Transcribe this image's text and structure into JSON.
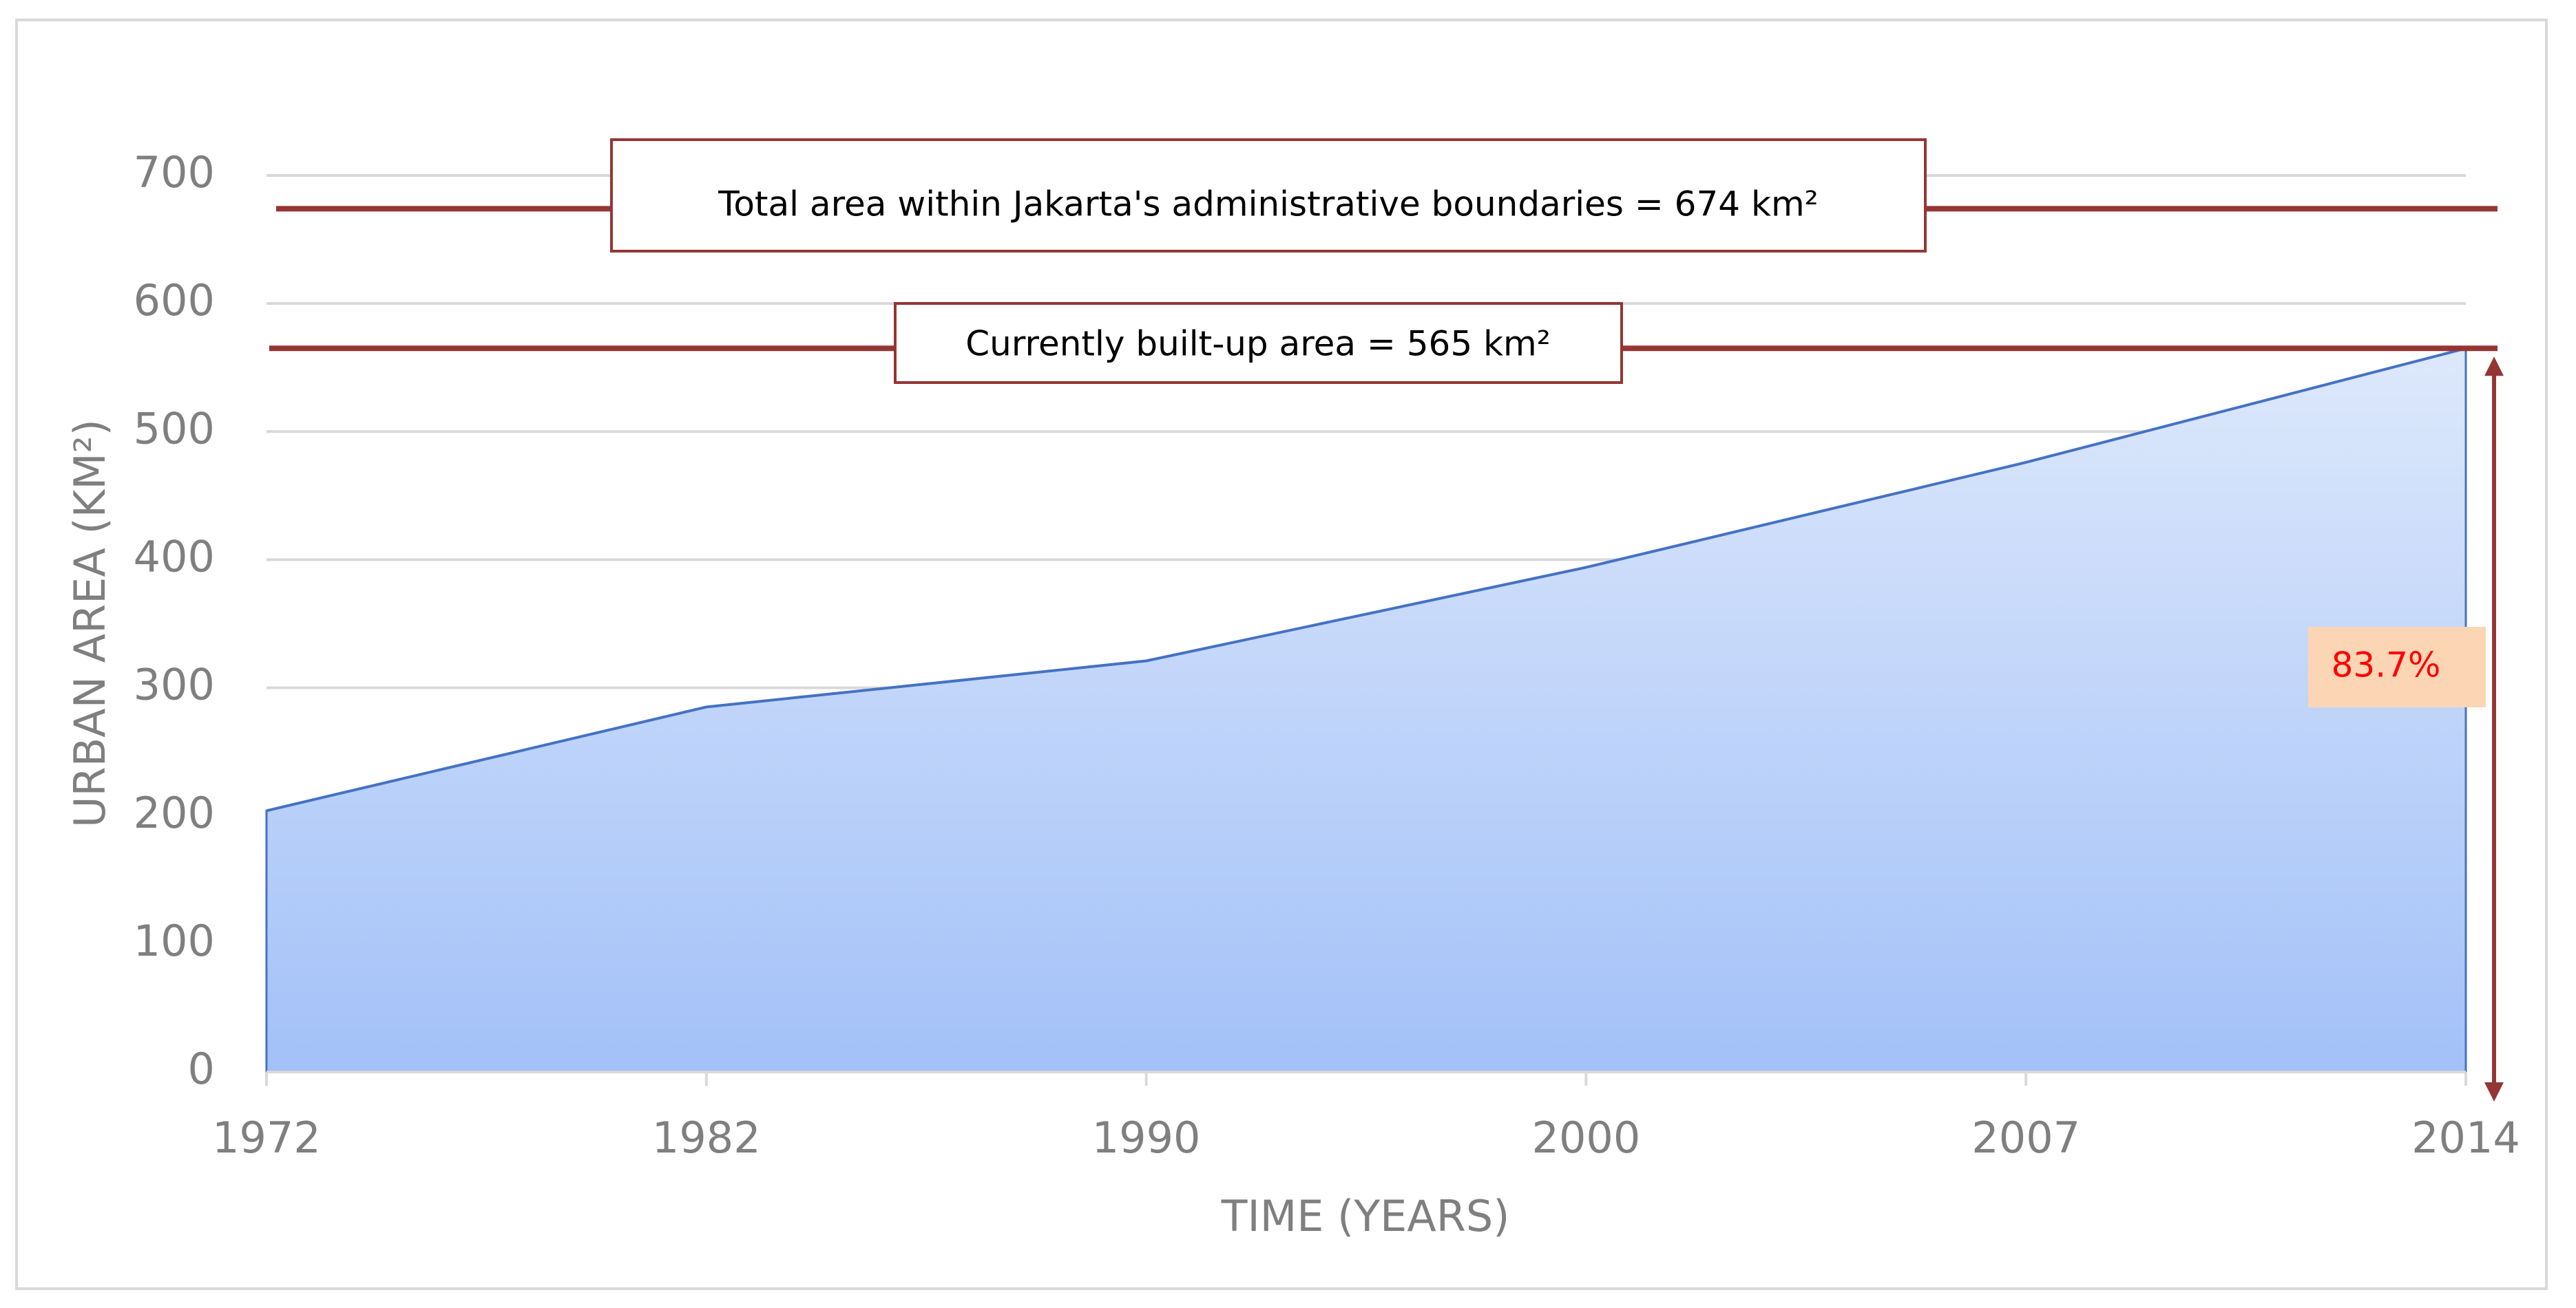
{
  "chart_data": {
    "type": "area",
    "categories": [
      "1972",
      "1982",
      "1990",
      "2000",
      "2007",
      "2014"
    ],
    "values": [
      204,
      285,
      321,
      394,
      476,
      565
    ],
    "color": "#4472c4",
    "ylim": [
      0,
      700
    ],
    "yticks": [
      0,
      100,
      200,
      300,
      400,
      500,
      600,
      700
    ],
    "grid": true,
    "x_label": "TIME (YEARS)",
    "y_label": "URBAN AREA (KM²)",
    "annotations": [
      {
        "text": "Total area within Jakarta's administrative boundaries = 674 km²",
        "value": 674,
        "color": "#943634"
      },
      {
        "text": "Currently built-up area =  565 km²",
        "value": 565,
        "color": "#943634"
      },
      {
        "text": "83.7%"
      }
    ]
  }
}
